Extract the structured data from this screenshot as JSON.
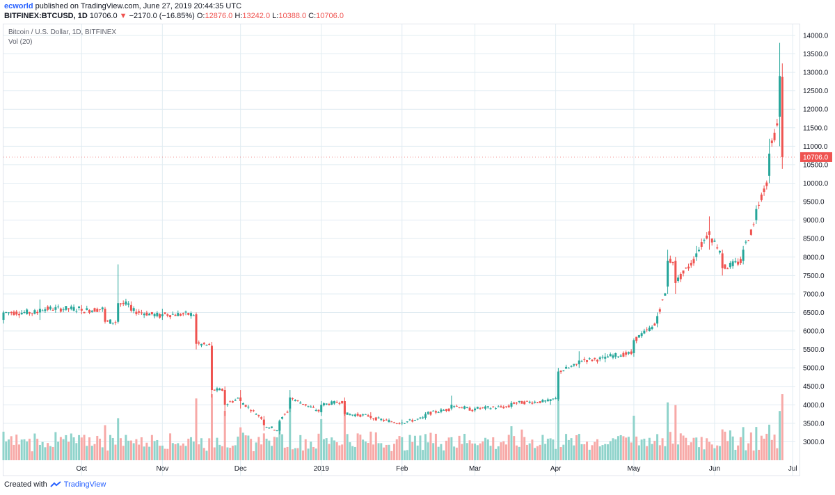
{
  "header": {
    "user": "ecworld",
    "published": "published on TradingView.com, June 27, 2019 20:44:35 UTC",
    "symbol": "BITFINEX:BTCUSD, 1D",
    "last": "10706.0",
    "arrow": "▼",
    "change": "−2170.0 (−16.85%)",
    "o_label": "O:",
    "o_value": "12876.0",
    "h_label": "H:",
    "h_value": "13242.0",
    "l_label": "L:",
    "l_value": "10388.0",
    "c_label": "C:",
    "c_value": "10706.0"
  },
  "pane": {
    "title": "Bitcoin / U.S. Dollar, 1D, BITFINEX",
    "vol_label": "Vol (20)"
  },
  "footer": {
    "created_with": "Created with",
    "brand": "TradingView",
    "logo_icon": "tradingview-logo-icon"
  },
  "colors": {
    "up": "#26a69a",
    "down": "#ef5350",
    "vol_up": "#8fd3cb",
    "vol_down": "#f7a9a7",
    "grid": "#e1ecf2",
    "last_label": "#ef5350"
  },
  "chart_data": {
    "type": "candlestick",
    "title": "Bitcoin / U.S. Dollar, 1D, BITFINEX",
    "x_tick_labels": [
      "Oct",
      "Nov",
      "Dec",
      "2019",
      "Feb",
      "Mar",
      "Apr",
      "May",
      "Jun",
      "Jul"
    ],
    "y_tick_labels": [
      "3000.0",
      "3500.0",
      "4000.0",
      "4500.0",
      "5000.0",
      "5500.0",
      "6000.0",
      "6500.0",
      "7000.0",
      "7500.0",
      "8000.0",
      "8500.0",
      "9000.0",
      "9500.0",
      "10000.0",
      "10500.0",
      "11000.0",
      "11500.0",
      "12000.0",
      "12500.0",
      "13000.0",
      "13500.0",
      "14000.0"
    ],
    "ylim": [
      2500,
      14300
    ],
    "last_price_label": "10706.0",
    "grid": true,
    "series": [
      {
        "name": "BITFINEX:BTCUSD",
        "points": [
          {
            "date": "2018-09-01",
            "open": 6300,
            "high": 6550,
            "low": 6200,
            "close": 6500
          },
          {
            "date": "2018-09-15",
            "open": 6500,
            "high": 6850,
            "low": 6300,
            "close": 6600
          },
          {
            "date": "2018-10-01",
            "open": 6600,
            "high": 6700,
            "low": 6450,
            "close": 6550
          },
          {
            "date": "2018-10-10",
            "open": 6600,
            "high": 6650,
            "low": 6200,
            "close": 6250
          },
          {
            "date": "2018-10-15",
            "open": 6250,
            "high": 7800,
            "low": 6200,
            "close": 6750
          },
          {
            "date": "2018-10-20",
            "open": 6700,
            "high": 6800,
            "low": 6500,
            "close": 6550
          },
          {
            "date": "2018-11-01",
            "open": 6400,
            "high": 6600,
            "low": 6300,
            "close": 6450
          },
          {
            "date": "2018-11-14",
            "open": 6450,
            "high": 6500,
            "low": 5500,
            "close": 5650
          },
          {
            "date": "2018-11-20",
            "open": 5600,
            "high": 5700,
            "low": 4200,
            "close": 4400
          },
          {
            "date": "2018-11-25",
            "open": 4400,
            "high": 4500,
            "low": 3700,
            "close": 4000
          },
          {
            "date": "2018-12-01",
            "open": 4200,
            "high": 4400,
            "low": 3900,
            "close": 4100
          },
          {
            "date": "2018-12-10",
            "open": 3600,
            "high": 3700,
            "low": 3300,
            "close": 3450
          },
          {
            "date": "2018-12-16",
            "open": 3300,
            "high": 3600,
            "low": 3200,
            "close": 3550
          },
          {
            "date": "2018-12-20",
            "open": 3900,
            "high": 4400,
            "low": 3800,
            "close": 4200
          },
          {
            "date": "2019-01-01",
            "open": 3800,
            "high": 4100,
            "low": 3700,
            "close": 4000
          },
          {
            "date": "2019-01-10",
            "open": 4100,
            "high": 4200,
            "low": 3700,
            "close": 3750
          },
          {
            "date": "2019-01-20",
            "open": 3700,
            "high": 3800,
            "low": 3600,
            "close": 3650
          },
          {
            "date": "2019-02-01",
            "open": 3500,
            "high": 3600,
            "low": 3450,
            "close": 3520
          },
          {
            "date": "2019-02-10",
            "open": 3650,
            "high": 3800,
            "low": 3600,
            "close": 3750
          },
          {
            "date": "2019-02-20",
            "open": 3900,
            "high": 4250,
            "low": 3850,
            "close": 4000
          },
          {
            "date": "2019-03-01",
            "open": 3850,
            "high": 3950,
            "low": 3800,
            "close": 3900
          },
          {
            "date": "2019-03-15",
            "open": 3950,
            "high": 4100,
            "low": 3900,
            "close": 4050
          },
          {
            "date": "2019-03-30",
            "open": 4100,
            "high": 4150,
            "low": 4000,
            "close": 4150
          },
          {
            "date": "2019-04-02",
            "open": 4150,
            "high": 5000,
            "low": 4100,
            "close": 4900
          },
          {
            "date": "2019-04-10",
            "open": 5100,
            "high": 5450,
            "low": 5000,
            "close": 5200
          },
          {
            "date": "2019-04-20",
            "open": 5250,
            "high": 5400,
            "low": 5150,
            "close": 5300
          },
          {
            "date": "2019-05-01",
            "open": 5400,
            "high": 5800,
            "low": 5300,
            "close": 5750
          },
          {
            "date": "2019-05-10",
            "open": 6200,
            "high": 6500,
            "low": 6100,
            "close": 6400
          },
          {
            "date": "2019-05-14",
            "open": 7200,
            "high": 8200,
            "low": 7000,
            "close": 7900
          },
          {
            "date": "2019-05-17",
            "open": 7900,
            "high": 8000,
            "low": 7000,
            "close": 7300
          },
          {
            "date": "2019-05-25",
            "open": 8000,
            "high": 8300,
            "low": 7900,
            "close": 8100
          },
          {
            "date": "2019-05-30",
            "open": 8700,
            "high": 9100,
            "low": 8200,
            "close": 8600
          },
          {
            "date": "2019-06-04",
            "open": 8100,
            "high": 8200,
            "low": 7500,
            "close": 7700
          },
          {
            "date": "2019-06-12",
            "open": 7900,
            "high": 8300,
            "low": 7800,
            "close": 8200
          },
          {
            "date": "2019-06-17",
            "open": 9000,
            "high": 9400,
            "low": 8900,
            "close": 9300
          },
          {
            "date": "2019-06-22",
            "open": 10200,
            "high": 11200,
            "low": 10000,
            "close": 10800
          },
          {
            "date": "2019-06-26",
            "open": 11800,
            "high": 13800,
            "low": 11000,
            "close": 12900
          },
          {
            "date": "2019-06-27",
            "open": 12876,
            "high": 13242,
            "low": 10388,
            "close": 10706
          }
        ]
      }
    ]
  }
}
